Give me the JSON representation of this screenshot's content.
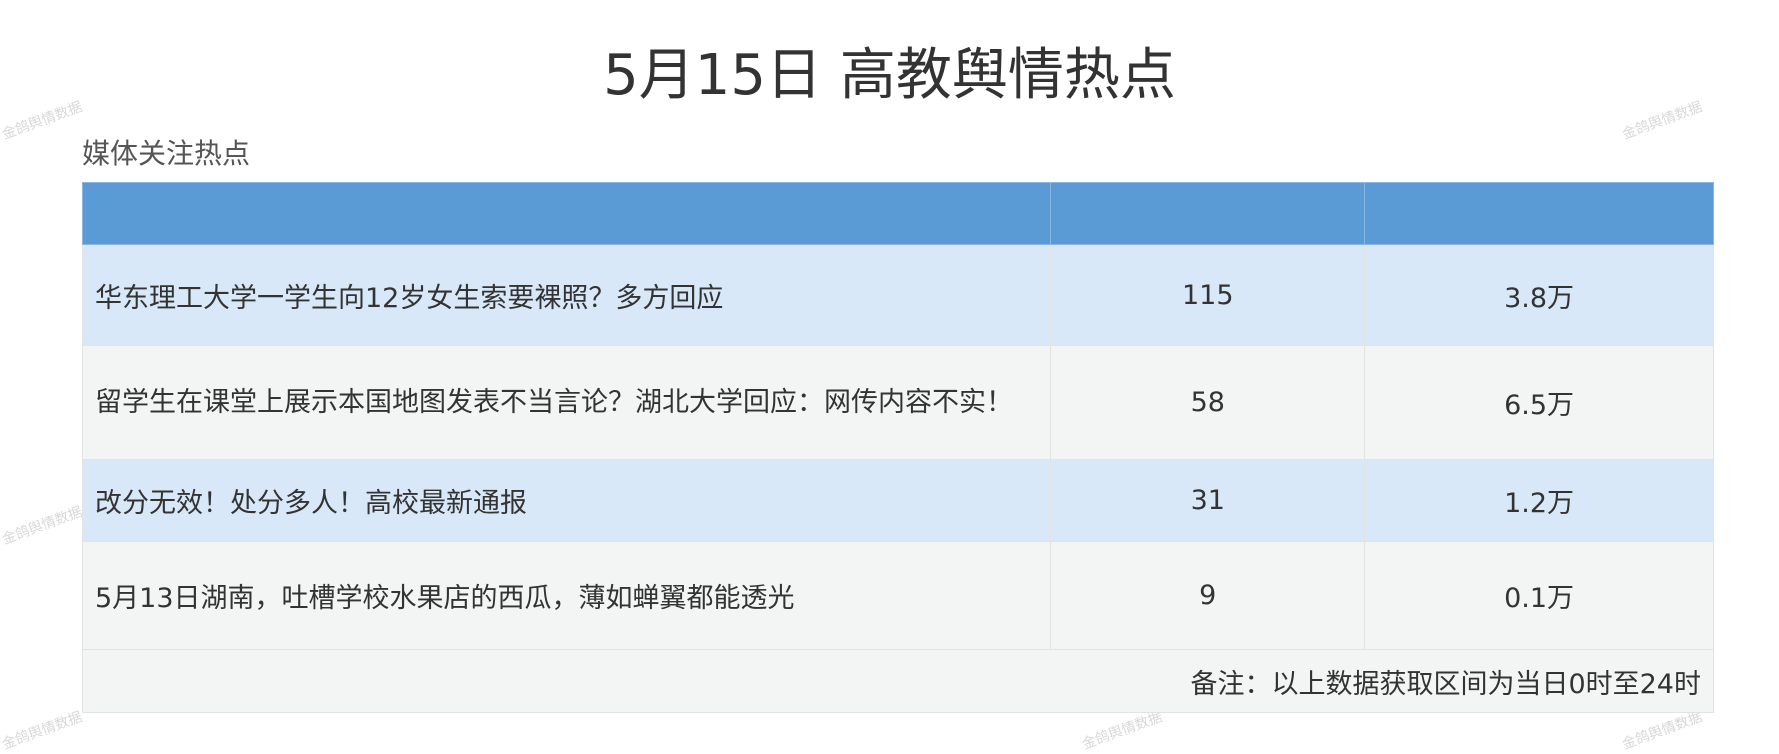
{
  "title": "5月15日 高教舆情热点",
  "subtitle": "媒体关注热点",
  "watermark": "金鸽舆情数据",
  "colors": {
    "header": "#5b9bd5",
    "row_blue": "#d8e8f9",
    "row_grey": "#f3f4f4"
  },
  "table": {
    "headers": [
      "",
      "",
      ""
    ],
    "rows": [
      {
        "title": "华东理工大学一学生向12岁女生索要裸照？多方回应",
        "count": "115",
        "heat": "3.8万"
      },
      {
        "title": "留学生在课堂上展示本国地图发表不当言论？湖北大学回应：网传内容不实！",
        "count": "58",
        "heat": "6.5万"
      },
      {
        "title": "改分无效！处分多人！高校最新通报",
        "count": "31",
        "heat": "1.2万"
      },
      {
        "title": "5月13日湖南，吐槽学校水果店的西瓜，薄如蝉翼都能透光",
        "count": "9",
        "heat": "0.1万"
      }
    ],
    "note": "备注：以上数据获取区间为当日0时至24时"
  }
}
